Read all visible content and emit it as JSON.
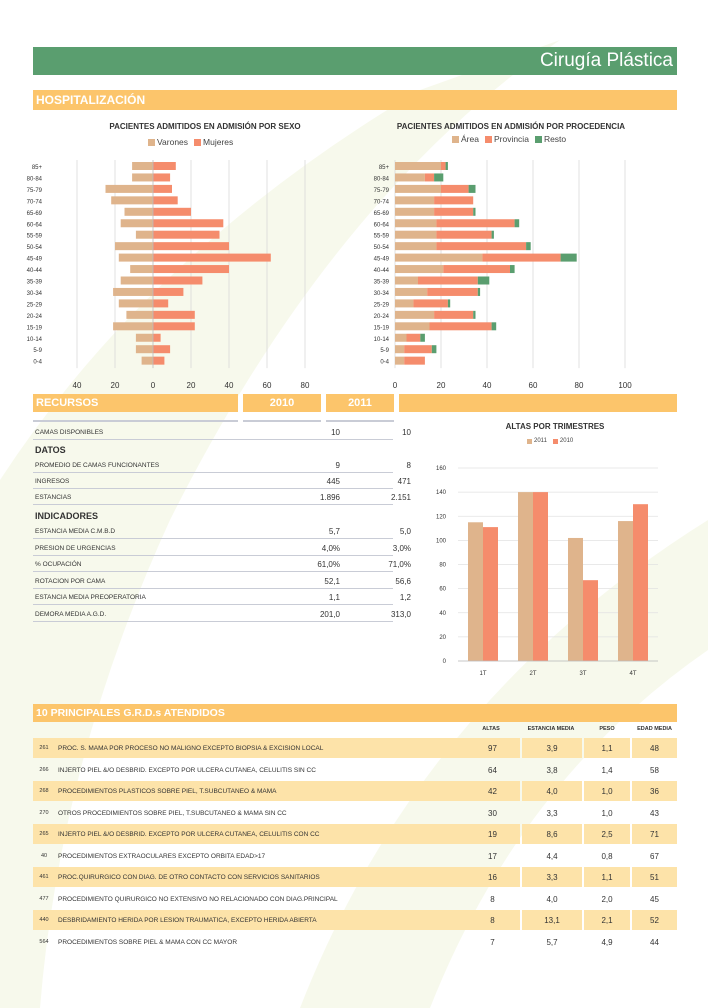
{
  "header": {
    "title": "Cirugía Plástica"
  },
  "hospitalizacion": {
    "title": "HOSPITALIZACIÓN"
  },
  "chart_sexo": {
    "title": "PACIENTES ADMITIDOS EN ADMISIÓN POR SEXO",
    "legend": [
      "Varones",
      "Mujeres"
    ],
    "colors": {
      "varones": "#dfb48c",
      "mujeres": "#f58c6c"
    }
  },
  "chart_procedencia": {
    "title": "PACIENTES ADMITIDOS EN ADMISIÓN  POR PROCEDENCIA",
    "legend": [
      "Área",
      "Provincia",
      "Resto"
    ],
    "colors": {
      "area": "#dfb48c",
      "provincia": "#f58c6c",
      "resto": "#5a9e6f"
    }
  },
  "chart_trimestres": {
    "title": "ALTAS POR TRIMESTRES",
    "legend": [
      "2011",
      "2010"
    ]
  },
  "chart_data": [
    {
      "type": "bar",
      "orientation": "horizontal-diverging",
      "title": "PACIENTES ADMITIDOS EN ADMISIÓN POR SEXO",
      "categories": [
        "85+",
        "80-84",
        "75-79",
        "70-74",
        "65-69",
        "60-64",
        "55-59",
        "50-54",
        "45-49",
        "40-44",
        "35-39",
        "30-34",
        "25-29",
        "20-24",
        "15-19",
        "10-14",
        "5-9",
        "0-4"
      ],
      "series": [
        {
          "name": "Varones",
          "values": [
            11,
            11,
            25,
            22,
            15,
            17,
            9,
            20,
            18,
            12,
            17,
            21,
            18,
            14,
            21,
            9,
            9,
            6
          ]
        },
        {
          "name": "Mujeres",
          "values": [
            12,
            9,
            10,
            13,
            20,
            37,
            35,
            40,
            62,
            40,
            26,
            16,
            8,
            22,
            22,
            4,
            9,
            6
          ]
        }
      ],
      "xticks": [
        "40",
        "20",
        "0",
        "20",
        "40",
        "60",
        "80"
      ],
      "xlim": [
        -40,
        80
      ]
    },
    {
      "type": "bar",
      "orientation": "horizontal-stacked",
      "title": "PACIENTES ADMITIDOS EN ADMISIÓN  POR PROCEDENCIA",
      "categories": [
        "85+",
        "80-84",
        "75-79",
        "70-74",
        "65-69",
        "60-64",
        "55-59",
        "50-54",
        "45-49",
        "40-44",
        "35-39",
        "30-34",
        "25-29",
        "20-24",
        "15-19",
        "10-14",
        "5-9",
        "0-4"
      ],
      "series": [
        {
          "name": "Área",
          "values": [
            20,
            13,
            20,
            17,
            17,
            18,
            18,
            18,
            38,
            21,
            10,
            14,
            8,
            17,
            15,
            5,
            4,
            4
          ]
        },
        {
          "name": "Provincia",
          "values": [
            2,
            4,
            12,
            17,
            17,
            34,
            24,
            39,
            34,
            29,
            26,
            22,
            15,
            17,
            27,
            6,
            12,
            9
          ]
        },
        {
          "name": "Resto",
          "values": [
            1,
            4,
            3,
            0,
            1,
            2,
            1,
            2,
            7,
            2,
            5,
            1,
            1,
            1,
            2,
            2,
            2,
            0
          ]
        }
      ],
      "xticks": [
        "0",
        "20",
        "40",
        "60",
        "80",
        "100"
      ],
      "xlim": [
        0,
        100
      ]
    },
    {
      "type": "bar",
      "title": "ALTAS POR TRIMESTRES",
      "categories": [
        "1T",
        "2T",
        "3T",
        "4T"
      ],
      "series": [
        {
          "name": "2011",
          "values": [
            115,
            140,
            102,
            116
          ]
        },
        {
          "name": "2010",
          "values": [
            111,
            140,
            67,
            130
          ]
        }
      ],
      "ylim": [
        0,
        160
      ],
      "yticks": [
        "0",
        "20",
        "40",
        "60",
        "80",
        "100",
        "120",
        "140",
        "160"
      ]
    }
  ],
  "recursos": {
    "title": "RECURSOS",
    "col_2010": "2010",
    "col_2011": "2011",
    "camas": {
      "label": "CAMAS DISPONIBLES",
      "v2010": "10",
      "v2011": "10"
    },
    "datos_title": "DATOS",
    "datos": [
      {
        "label": "PROMEDIO DE CAMAS FUNCIONANTES",
        "v2010": "9",
        "v2011": "8"
      },
      {
        "label": "INGRESOS",
        "v2010": "445",
        "v2011": "471"
      },
      {
        "label": "ESTANCIAS",
        "v2010": "1.896",
        "v2011": "2.151"
      }
    ],
    "indicadores_title": "INDICADORES",
    "indicadores": [
      {
        "label": "ESTANCIA MEDIA C.M.B.D",
        "v2010": "5,7",
        "v2011": "5,0"
      },
      {
        "label": "PRESION DE URGENCIAS",
        "v2010": "4,0%",
        "v2011": "3,0%"
      },
      {
        "label": "% OCUPACIÓN",
        "v2010": "61,0%",
        "v2011": "71,0%"
      },
      {
        "label": "ROTACION POR CAMA",
        "v2010": "52,1",
        "v2011": "56,6"
      },
      {
        "label": "ESTANCIA MEDIA PREOPERATORIA",
        "v2010": "1,1",
        "v2011": "1,2"
      },
      {
        "label": "DEMORA MEDIA A.G.D.",
        "v2010": "201,0",
        "v2011": "313,0"
      }
    ]
  },
  "grd": {
    "title": "10 PRINCIPALES G.R.D.s ATENDIDOS",
    "headers": [
      "ALTAS",
      "ESTANCIA MEDIA",
      "PESO",
      "EDAD MEDIA"
    ],
    "rows": [
      {
        "code": "261",
        "desc": "PROC. S. MAMA POR PROCESO NO MALIGNO EXCEPTO BIOPSIA & EXCISION LOCAL",
        "altas": "97",
        "estancia": "3,9",
        "peso": "1,1",
        "edad": "48"
      },
      {
        "code": "266",
        "desc": "INJERTO PIEL &/O DESBRID. EXCEPTO POR ULCERA CUTANEA, CELULITIS SIN CC",
        "altas": "64",
        "estancia": "3,8",
        "peso": "1,4",
        "edad": "58"
      },
      {
        "code": "268",
        "desc": "PROCEDIMIENTOS PLASTICOS SOBRE PIEL, T.SUBCUTANEO & MAMA",
        "altas": "42",
        "estancia": "4,0",
        "peso": "1,0",
        "edad": "36"
      },
      {
        "code": "270",
        "desc": "OTROS PROCEDIMIENTOS SOBRE PIEL, T.SUBCUTANEO & MAMA SIN CC",
        "altas": "30",
        "estancia": "3,3",
        "peso": "1,0",
        "edad": "43"
      },
      {
        "code": "265",
        "desc": "INJERTO PIEL &/O DESBRID. EXCEPTO POR ULCERA CUTANEA, CELULITIS CON CC",
        "altas": "19",
        "estancia": "8,6",
        "peso": "2,5",
        "edad": "71"
      },
      {
        "code": "40",
        "desc": "PROCEDIMIENTOS EXTRAOCULARES EXCEPTO ORBITA EDAD>17",
        "altas": "17",
        "estancia": "4,4",
        "peso": "0,8",
        "edad": "67"
      },
      {
        "code": "461",
        "desc": "PROC.QUIRURGICO CON DIAG. DE OTRO CONTACTO CON SERVICIOS SANITARIOS",
        "altas": "16",
        "estancia": "3,3",
        "peso": "1,1",
        "edad": "51"
      },
      {
        "code": "477",
        "desc": "PROCEDIMIENTO QUIRURGICO NO EXTENSIVO NO RELACIONADO CON DIAG.PRINCIPAL",
        "altas": "8",
        "estancia": "4,0",
        "peso": "2,0",
        "edad": "45"
      },
      {
        "code": "440",
        "desc": "DESBRIDAMIENTO HERIDA POR LESION TRAUMATICA, EXCEPTO HERIDA ABIERTA",
        "altas": "8",
        "estancia": "13,1",
        "peso": "2,1",
        "edad": "52"
      },
      {
        "code": "564",
        "desc": "PROCEDIMIENTOS SOBRE PIEL & MAMA CON CC MAYOR",
        "altas": "7",
        "estancia": "5,7",
        "peso": "4,9",
        "edad": "44"
      }
    ]
  }
}
